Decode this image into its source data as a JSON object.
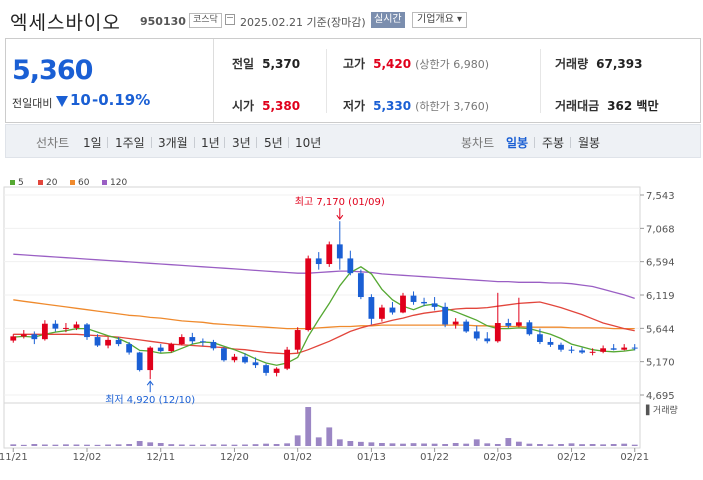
{
  "header": {
    "name": "엑세스바이오",
    "code": "950130",
    "market": "코스닥",
    "date": "2025.02.21 기준(장마감)",
    "realtime_label": "실시간",
    "company_label": "기업개요 ▾"
  },
  "quote": {
    "price": "5,360",
    "change_label": "전일대비",
    "change": "10",
    "change_pct": "-0.19%",
    "prev_label": "전일",
    "prev": "5,370",
    "open_label": "시가",
    "open": "5,380",
    "high_label": "고가",
    "high": "5,420",
    "high_sub": "(상한가 6,980)",
    "low_label": "저가",
    "low": "5,330",
    "low_sub": "(하한가 3,760)",
    "vol_label": "거래량",
    "vol": "67,393",
    "amt_label": "거래대금",
    "amt": "362 백만"
  },
  "tabs": {
    "line_head": "선차트",
    "line_items": [
      "1일",
      "1주일",
      "3개월",
      "1년",
      "3년",
      "5년",
      "10년"
    ],
    "candle_head": "봉차트",
    "candle_items": [
      "일봉",
      "주봉",
      "월봉"
    ],
    "active": "일봉"
  },
  "colors": {
    "up": "#e0001b",
    "down": "#1a5fd4",
    "ma5": "#55a832",
    "ma20": "#e2463c",
    "ma60": "#ef8a2d",
    "ma120": "#9a5fc4",
    "volume": "#9b86c4"
  },
  "chart_data": {
    "type": "candlestick",
    "legend": [
      {
        "label": "5",
        "color": "#55a832"
      },
      {
        "label": "20",
        "color": "#e2463c"
      },
      {
        "label": "60",
        "color": "#ef8a2d"
      },
      {
        "label": "120",
        "color": "#9a5fc4"
      }
    ],
    "y_ticks": [
      7543,
      7068,
      6594,
      6119,
      5644,
      5170,
      4695
    ],
    "y_tick_labels": [
      "7,543",
      "7,068",
      "6,594",
      "6,119",
      "5,644",
      "5,170",
      "4,695"
    ],
    "ylim": [
      4695,
      7543
    ],
    "x_tick_labels": [
      "11/21",
      "12/02",
      "12/11",
      "12/20",
      "01/02",
      "01/13",
      "01/22",
      "02/03",
      "02/12",
      "02/21"
    ],
    "x_tick_index": [
      0,
      7,
      14,
      21,
      27,
      34,
      40,
      46,
      53,
      59
    ],
    "high_annot": "최고 7,170 (01/09)",
    "high_annot_index": 31,
    "high_value": 7170,
    "low_annot": "최저 4,920 (12/10)",
    "low_annot_index": 13,
    "low_value": 4920,
    "volume_label": "거래량",
    "ohlc": [
      [
        5470,
        5560,
        5440,
        5530
      ],
      [
        5530,
        5620,
        5500,
        5560
      ],
      [
        5560,
        5600,
        5420,
        5490
      ],
      [
        5490,
        5760,
        5470,
        5710
      ],
      [
        5710,
        5760,
        5600,
        5640
      ],
      [
        5640,
        5720,
        5590,
        5650
      ],
      [
        5650,
        5740,
        5620,
        5700
      ],
      [
        5700,
        5720,
        5480,
        5520
      ],
      [
        5520,
        5560,
        5380,
        5400
      ],
      [
        5400,
        5520,
        5360,
        5480
      ],
      [
        5480,
        5520,
        5390,
        5420
      ],
      [
        5420,
        5450,
        5270,
        5300
      ],
      [
        5300,
        5310,
        5030,
        5050
      ],
      [
        5050,
        5390,
        4920,
        5370
      ],
      [
        5370,
        5420,
        5300,
        5320
      ],
      [
        5320,
        5440,
        5300,
        5420
      ],
      [
        5420,
        5560,
        5400,
        5520
      ],
      [
        5520,
        5580,
        5420,
        5460
      ],
      [
        5460,
        5500,
        5390,
        5450
      ],
      [
        5450,
        5480,
        5330,
        5360
      ],
      [
        5360,
        5380,
        5170,
        5190
      ],
      [
        5190,
        5280,
        5160,
        5240
      ],
      [
        5240,
        5290,
        5140,
        5160
      ],
      [
        5160,
        5230,
        5080,
        5120
      ],
      [
        5120,
        5140,
        4970,
        5010
      ],
      [
        5010,
        5090,
        4960,
        5070
      ],
      [
        5070,
        5380,
        5050,
        5340
      ],
      [
        5340,
        5660,
        5300,
        5620
      ],
      [
        5620,
        6680,
        5600,
        6640
      ],
      [
        6640,
        6730,
        6480,
        6560
      ],
      [
        6560,
        6880,
        6520,
        6840
      ],
      [
        6840,
        7170,
        6480,
        6640
      ],
      [
        6640,
        6750,
        6400,
        6430
      ],
      [
        6430,
        6480,
        6060,
        6090
      ],
      [
        6090,
        6130,
        5700,
        5780
      ],
      [
        5780,
        5980,
        5740,
        5940
      ],
      [
        5940,
        6020,
        5840,
        5870
      ],
      [
        5870,
        6150,
        5860,
        6110
      ],
      [
        6110,
        6170,
        5980,
        6020
      ],
      [
        6020,
        6080,
        5960,
        6000
      ],
      [
        6000,
        6090,
        5900,
        5950
      ],
      [
        5950,
        6010,
        5660,
        5700
      ],
      [
        5700,
        5790,
        5640,
        5740
      ],
      [
        5740,
        5770,
        5580,
        5600
      ],
      [
        5600,
        5680,
        5470,
        5500
      ],
      [
        5500,
        5590,
        5430,
        5460
      ],
      [
        5460,
        6150,
        5440,
        5720
      ],
      [
        5720,
        5780,
        5650,
        5680
      ],
      [
        5680,
        6080,
        5660,
        5730
      ],
      [
        5730,
        5760,
        5540,
        5560
      ],
      [
        5560,
        5640,
        5420,
        5450
      ],
      [
        5450,
        5510,
        5380,
        5410
      ],
      [
        5410,
        5440,
        5310,
        5340
      ],
      [
        5340,
        5390,
        5290,
        5330
      ],
      [
        5330,
        5370,
        5280,
        5300
      ],
      [
        5300,
        5360,
        5260,
        5310
      ],
      [
        5310,
        5400,
        5290,
        5360
      ],
      [
        5360,
        5420,
        5330,
        5340
      ],
      [
        5340,
        5420,
        5330,
        5370
      ],
      [
        5370,
        5420,
        5330,
        5360
      ]
    ],
    "volume": [
      10,
      7,
      12,
      9,
      8,
      10,
      9,
      8,
      7,
      9,
      10,
      12,
      30,
      22,
      18,
      11,
      9,
      8,
      8,
      10,
      9,
      8,
      9,
      11,
      14,
      12,
      16,
      64,
      235,
      52,
      112,
      40,
      30,
      25,
      22,
      18,
      16,
      14,
      17,
      15,
      14,
      12,
      18,
      14,
      40,
      16,
      12,
      48,
      26,
      14,
      12,
      10,
      12,
      16,
      11,
      12,
      10,
      12,
      14,
      8
    ],
    "ma5": [
      5520,
      5530,
      5520,
      5560,
      5590,
      5610,
      5640,
      5640,
      5590,
      5540,
      5500,
      5430,
      5330,
      5320,
      5290,
      5300,
      5360,
      5420,
      5450,
      5440,
      5390,
      5340,
      5280,
      5210,
      5150,
      5120,
      5150,
      5230,
      5530,
      5770,
      6000,
      6250,
      6440,
      6520,
      6420,
      6200,
      6050,
      5960,
      5910,
      5970,
      5990,
      5930,
      5880,
      5820,
      5760,
      5680,
      5640,
      5640,
      5650,
      5640,
      5600,
      5560,
      5500,
      5420,
      5380,
      5340,
      5320,
      5310,
      5320,
      5340
    ],
    "ma20": [
      5560,
      5560,
      5560,
      5560,
      5560,
      5560,
      5560,
      5550,
      5540,
      5530,
      5520,
      5500,
      5480,
      5460,
      5440,
      5420,
      5410,
      5400,
      5390,
      5380,
      5370,
      5350,
      5340,
      5320,
      5300,
      5290,
      5280,
      5290,
      5340,
      5400,
      5460,
      5530,
      5600,
      5650,
      5690,
      5720,
      5760,
      5790,
      5830,
      5860,
      5880,
      5900,
      5920,
      5930,
      5930,
      5940,
      5960,
      5980,
      6000,
      6010,
      6020,
      5980,
      5940,
      5890,
      5840,
      5780,
      5720,
      5680,
      5640,
      5610
    ],
    "ma60": [
      6050,
      6030,
      6010,
      5990,
      5970,
      5950,
      5930,
      5910,
      5890,
      5870,
      5850,
      5830,
      5820,
      5800,
      5790,
      5770,
      5750,
      5740,
      5730,
      5710,
      5700,
      5690,
      5680,
      5670,
      5660,
      5650,
      5640,
      5640,
      5640,
      5650,
      5660,
      5670,
      5670,
      5680,
      5680,
      5690,
      5690,
      5690,
      5690,
      5690,
      5690,
      5690,
      5690,
      5690,
      5680,
      5680,
      5670,
      5670,
      5670,
      5660,
      5660,
      5660,
      5660,
      5650,
      5650,
      5650,
      5650,
      5640,
      5640,
      5640
    ],
    "ma120": [
      6700,
      6690,
      6680,
      6670,
      6660,
      6650,
      6640,
      6630,
      6620,
      6610,
      6600,
      6590,
      6580,
      6570,
      6560,
      6550,
      6540,
      6530,
      6520,
      6510,
      6500,
      6490,
      6480,
      6470,
      6460,
      6450,
      6440,
      6430,
      6430,
      6440,
      6450,
      6460,
      6460,
      6450,
      6440,
      6420,
      6410,
      6400,
      6390,
      6380,
      6370,
      6360,
      6350,
      6340,
      6330,
      6320,
      6310,
      6310,
      6300,
      6300,
      6300,
      6290,
      6290,
      6280,
      6260,
      6240,
      6200,
      6160,
      6120,
      6070
    ]
  }
}
